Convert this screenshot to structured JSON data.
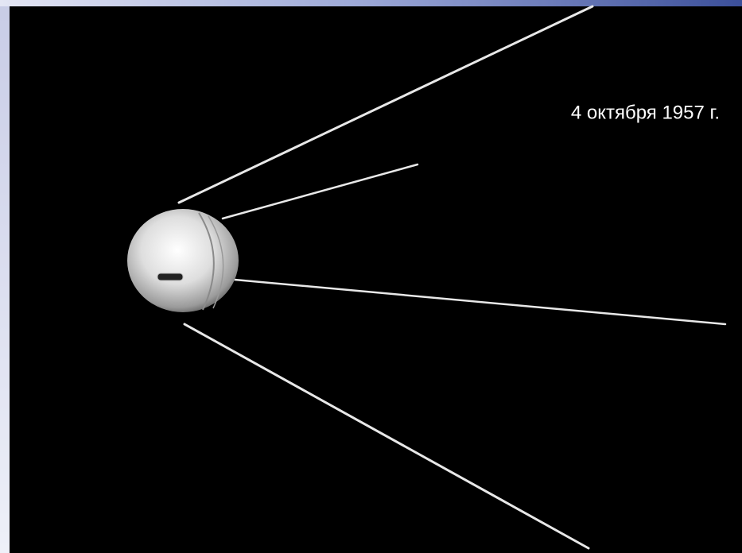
{
  "caption": "4 октября 1957 г."
}
